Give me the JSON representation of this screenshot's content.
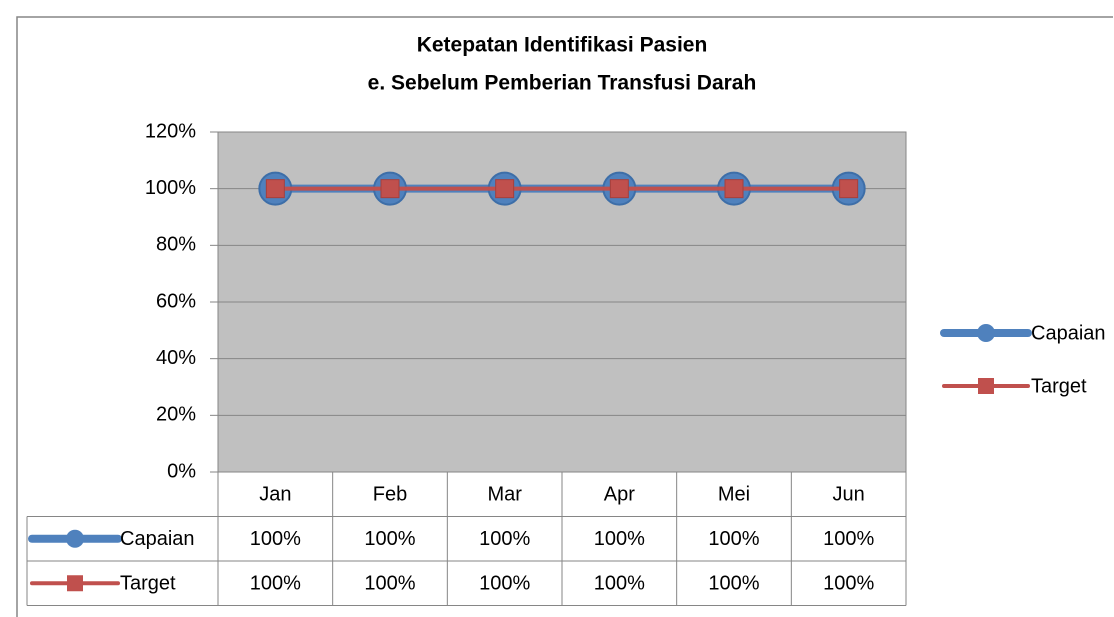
{
  "chart_data": {
    "type": "line",
    "title": "Ketepatan Identifikasi Pasien",
    "subtitle": "e. Sebelum Pemberian Transfusi Darah",
    "categories": [
      "Jan",
      "Feb",
      "Mar",
      "Apr",
      "Mei",
      "Jun"
    ],
    "series": [
      {
        "name": "Capaian",
        "color": "#4f81bd",
        "marker": "circle",
        "values": [
          100,
          100,
          100,
          100,
          100,
          100
        ],
        "value_labels": [
          "100%",
          "100%",
          "100%",
          "100%",
          "100%",
          "100%"
        ]
      },
      {
        "name": "Target",
        "color": "#c0504d",
        "marker": "square",
        "values": [
          100,
          100,
          100,
          100,
          100,
          100
        ],
        "value_labels": [
          "100%",
          "100%",
          "100%",
          "100%",
          "100%",
          "100%"
        ]
      }
    ],
    "ylim": [
      0,
      120
    ],
    "yticks": [
      {
        "value": 0,
        "label": "0%"
      },
      {
        "value": 20,
        "label": "20%"
      },
      {
        "value": 40,
        "label": "40%"
      },
      {
        "value": 60,
        "label": "60%"
      },
      {
        "value": 80,
        "label": "80%"
      },
      {
        "value": 100,
        "label": "100%"
      },
      {
        "value": 120,
        "label": "120%"
      }
    ],
    "grid": true,
    "legend": "right",
    "data_table": true
  }
}
